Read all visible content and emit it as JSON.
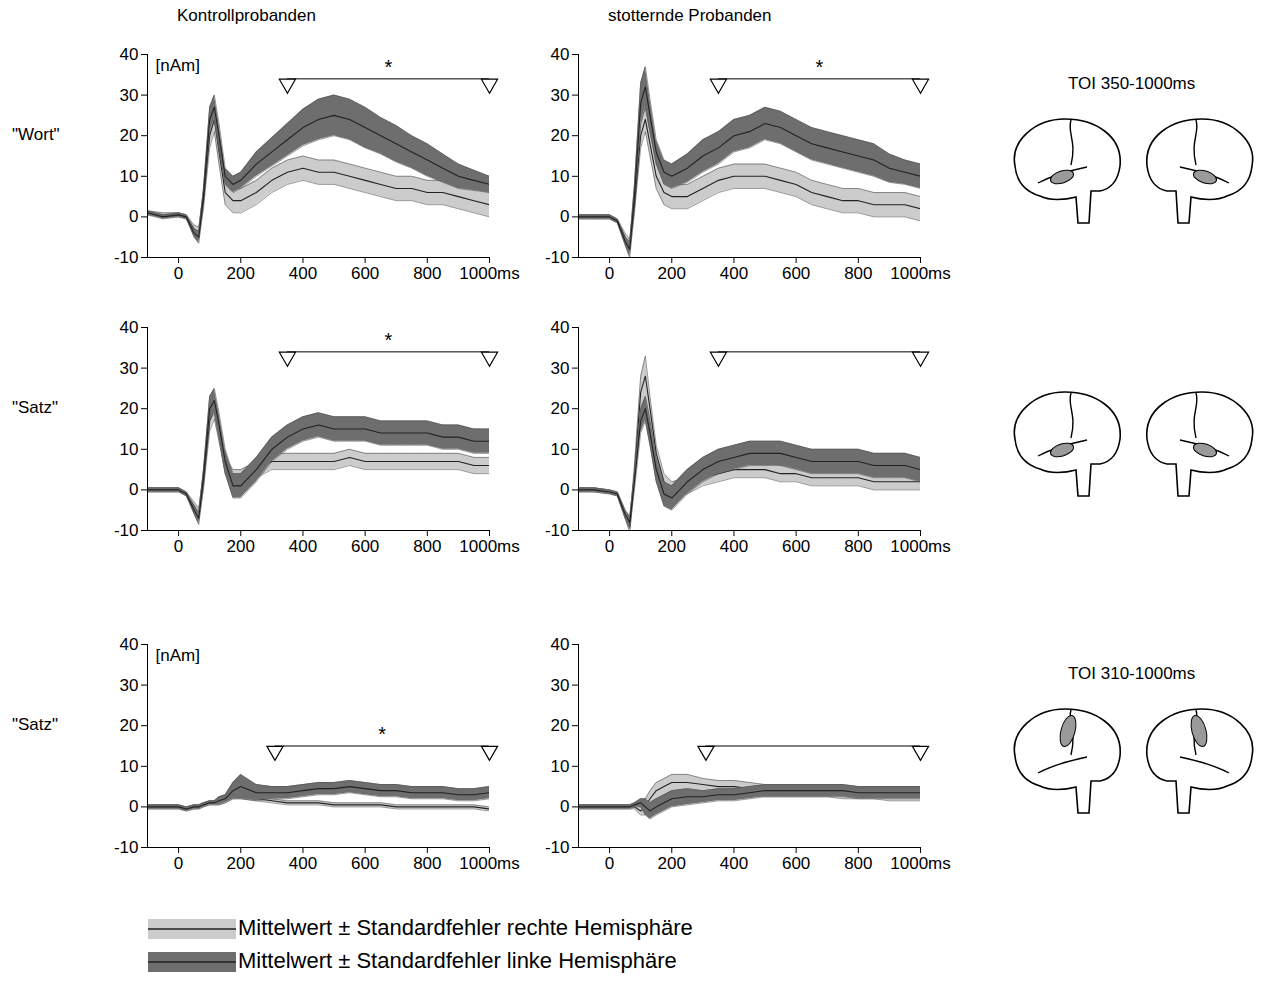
{
  "column_titles": [
    "Kontrollprobanden",
    "stotternde Probanden"
  ],
  "rows": [
    {
      "label": "\"Wort\"",
      "toi_label": "TOI 350-1000ms"
    },
    {
      "label": "\"Satz\""
    },
    {
      "label": "\"Satz\"",
      "toi_label": "TOI 310-1000ms"
    }
  ],
  "legend": "bottom",
  "chart_data": [
    {
      "type": "line",
      "unit_label": "[nAm]",
      "x": [
        -100,
        -50,
        0,
        25,
        50,
        65,
        80,
        100,
        115,
        130,
        150,
        175,
        200,
        250,
        300,
        350,
        400,
        450,
        500,
        550,
        600,
        650,
        700,
        750,
        800,
        850,
        900,
        950,
        1000
      ],
      "xlim": [
        -100,
        1000
      ],
      "xticks": [
        0,
        200,
        400,
        600,
        800,
        {
          "value": 1000,
          "label": "1000ms"
        }
      ],
      "ylim": [
        -10,
        40
      ],
      "yticks": [
        -10,
        0,
        10,
        20,
        30,
        40
      ],
      "series": [
        {
          "name": "Mittelwert ± Standardfehler rechte Hemisphäre",
          "color": "#cccccc",
          "values": [
            1,
            0.5,
            0.5,
            0,
            -3,
            -4,
            4,
            20,
            24,
            16,
            6,
            4,
            4,
            6,
            9,
            11,
            12,
            11,
            11,
            10,
            9,
            8,
            7,
            7,
            6,
            6,
            5,
            4,
            3
          ],
          "error": [
            0.5,
            0.5,
            0.5,
            0.5,
            1,
            1.5,
            2,
            3,
            3,
            3,
            3,
            3,
            3,
            3,
            3,
            3,
            3,
            3,
            3,
            3,
            3,
            3,
            3,
            3,
            3,
            3,
            3,
            3,
            3
          ]
        },
        {
          "name": "Mittelwert ± Standardfehler linke Hemisphäre",
          "color": "#6e6e6e",
          "values": [
            1,
            0,
            0.5,
            0,
            -4,
            -5,
            5,
            24,
            27,
            20,
            10,
            8,
            9,
            13,
            16,
            19,
            22,
            24,
            25,
            24,
            22,
            20,
            18,
            16,
            14,
            12,
            10,
            9,
            8
          ],
          "error": [
            0.5,
            0.5,
            0.5,
            0.5,
            1,
            1.5,
            2,
            3,
            3,
            3,
            2,
            2,
            2,
            3,
            3.5,
            4,
            4.5,
            5,
            5,
            5,
            5,
            4.5,
            4.5,
            4,
            4,
            3.5,
            3,
            2.5,
            2
          ]
        }
      ],
      "annotations": [
        {
          "x": [
            350,
            1000
          ],
          "y": 34,
          "text": "*"
        }
      ]
    },
    {
      "type": "line",
      "x": [
        -100,
        -50,
        0,
        25,
        50,
        65,
        80,
        100,
        115,
        130,
        150,
        175,
        200,
        250,
        300,
        350,
        400,
        450,
        500,
        550,
        600,
        650,
        700,
        750,
        800,
        850,
        900,
        950,
        1000
      ],
      "xlim": [
        -100,
        1000
      ],
      "xticks": [
        0,
        200,
        400,
        600,
        800,
        {
          "value": 1000,
          "label": "1000ms"
        }
      ],
      "ylim": [
        -10,
        40
      ],
      "yticks": [
        -10,
        0,
        10,
        20,
        30,
        40
      ],
      "series": [
        {
          "name": "Mittelwert ± Standardfehler rechte Hemisphäre",
          "color": "#cccccc",
          "values": [
            0,
            0,
            0,
            -1,
            -5,
            -7,
            3,
            20,
            24,
            18,
            10,
            6,
            5,
            5,
            7,
            9,
            10,
            10,
            10,
            9,
            8,
            6,
            5,
            4,
            4,
            3,
            3,
            3,
            2
          ],
          "error": [
            0.5,
            0.5,
            0.5,
            0.5,
            1,
            1.5,
            2,
            3,
            3,
            3,
            3,
            3,
            3,
            3,
            3,
            3,
            3,
            3,
            3,
            3,
            3,
            3,
            3,
            3,
            3,
            3,
            3,
            3,
            3
          ]
        },
        {
          "name": "Mittelwert ± Standardfehler linke Hemisphäre",
          "color": "#6e6e6e",
          "values": [
            0,
            0,
            0,
            -1,
            -6,
            -8,
            5,
            28,
            32,
            25,
            16,
            11,
            10,
            12,
            15,
            17,
            20,
            21,
            23,
            22,
            20,
            18,
            17,
            16,
            15,
            14,
            12,
            11,
            10
          ],
          "error": [
            0.5,
            0.5,
            0.5,
            0.5,
            1,
            2,
            3,
            5,
            5,
            4,
            3,
            3,
            3,
            3.5,
            4,
            4,
            4,
            4,
            4,
            4,
            4,
            4,
            4,
            4,
            4,
            4,
            3.5,
            3,
            3
          ]
        }
      ],
      "annotations": [
        {
          "x": [
            350,
            1000
          ],
          "y": 34,
          "text": "*"
        }
      ]
    },
    {
      "type": "line",
      "x": [
        -100,
        -50,
        0,
        25,
        50,
        65,
        80,
        100,
        115,
        130,
        150,
        175,
        200,
        250,
        300,
        350,
        400,
        450,
        500,
        550,
        600,
        650,
        700,
        750,
        800,
        850,
        900,
        950,
        1000
      ],
      "xlim": [
        -100,
        1000
      ],
      "xticks": [
        0,
        200,
        400,
        600,
        800,
        {
          "value": 1000,
          "label": "1000ms"
        }
      ],
      "ylim": [
        -10,
        40
      ],
      "yticks": [
        -10,
        0,
        10,
        20,
        30,
        40
      ],
      "series": [
        {
          "name": "Mittelwert ± Standardfehler rechte Hemisphäre",
          "color": "#cccccc",
          "values": [
            0,
            0,
            0,
            -1,
            -4,
            -6,
            2,
            17,
            20,
            14,
            6,
            3,
            3,
            5,
            7,
            7,
            7,
            7,
            7,
            8,
            7,
            7,
            7,
            7,
            7,
            7,
            7,
            6,
            6
          ],
          "error": [
            0.5,
            0.5,
            0.5,
            0.5,
            1,
            1.5,
            2,
            2.5,
            2.5,
            2,
            2,
            2,
            2,
            2,
            2,
            2,
            2,
            2,
            2,
            2,
            2,
            2,
            2,
            2,
            2,
            2,
            2,
            2,
            2
          ]
        },
        {
          "name": "Mittelwert ± Standardfehler linke Hemisphäre",
          "color": "#6e6e6e",
          "values": [
            0,
            0,
            0,
            -1,
            -5,
            -7,
            3,
            20,
            22,
            16,
            7,
            1,
            1,
            5,
            10,
            13,
            15,
            16,
            15,
            15,
            15,
            14,
            14,
            14,
            14,
            13,
            13,
            12,
            12
          ],
          "error": [
            0.5,
            0.5,
            0.5,
            0.5,
            1,
            1.5,
            2,
            3,
            3,
            3,
            3,
            3,
            3,
            3,
            3,
            3,
            3,
            3,
            3,
            3,
            3,
            3,
            3,
            3,
            3,
            3,
            3,
            3,
            3
          ]
        }
      ],
      "annotations": [
        {
          "x": [
            350,
            1000
          ],
          "y": 34,
          "text": "*"
        }
      ]
    },
    {
      "type": "line",
      "x": [
        -100,
        -50,
        0,
        25,
        50,
        65,
        80,
        100,
        115,
        130,
        150,
        175,
        200,
        250,
        300,
        350,
        400,
        450,
        500,
        550,
        600,
        650,
        700,
        750,
        800,
        850,
        900,
        950,
        1000
      ],
      "xlim": [
        -100,
        1000
      ],
      "xticks": [
        0,
        200,
        400,
        600,
        800,
        {
          "value": 1000,
          "label": "1000ms"
        }
      ],
      "ylim": [
        -10,
        40
      ],
      "yticks": [
        -10,
        0,
        10,
        20,
        30,
        40
      ],
      "series": [
        {
          "name": "Mittelwert ± Standardfehler rechte Hemisphäre",
          "color": "#cccccc",
          "values": [
            0,
            0,
            -0.5,
            -1,
            -6,
            -9,
            4,
            24,
            28,
            20,
            9,
            2,
            0,
            1,
            3,
            4,
            5,
            5,
            5,
            4,
            4,
            3,
            3,
            3,
            3,
            2,
            2,
            2,
            2
          ],
          "error": [
            0.5,
            0.5,
            0.5,
            0.5,
            1,
            1.5,
            2,
            4,
            5,
            3,
            2,
            2,
            2,
            2,
            2,
            2,
            2,
            2,
            2,
            2,
            2,
            2,
            2,
            2,
            2,
            2,
            2,
            2,
            2
          ]
        },
        {
          "name": "Mittelwert ± Standardfehler linke Hemisphäre",
          "color": "#6e6e6e",
          "values": [
            0,
            0,
            -0.5,
            -1,
            -6,
            -8,
            2,
            17,
            20,
            14,
            5,
            -1,
            -2,
            2,
            5,
            7,
            8,
            9,
            9,
            9,
            8,
            7,
            7,
            7,
            7,
            6,
            6,
            6,
            5
          ],
          "error": [
            0.5,
            0.5,
            0.5,
            0.5,
            1,
            1.5,
            2,
            3,
            3,
            3,
            3,
            3,
            3,
            3,
            3,
            3,
            3,
            3,
            3,
            3,
            3,
            3,
            3,
            3,
            3,
            3,
            3,
            3,
            3
          ]
        }
      ],
      "annotations": [
        {
          "x": [
            350,
            1000
          ],
          "y": 34
        }
      ]
    },
    {
      "type": "line",
      "unit_label": "[nAm]",
      "x": [
        -100,
        -50,
        0,
        25,
        50,
        65,
        80,
        100,
        115,
        130,
        150,
        175,
        200,
        250,
        300,
        350,
        400,
        450,
        500,
        550,
        600,
        650,
        700,
        750,
        800,
        850,
        900,
        950,
        1000
      ],
      "xlim": [
        -100,
        1000
      ],
      "xticks": [
        0,
        200,
        400,
        600,
        800,
        {
          "value": 1000,
          "label": "1000ms"
        }
      ],
      "ylim": [
        -10,
        40
      ],
      "yticks": [
        -10,
        0,
        10,
        20,
        30,
        40
      ],
      "series": [
        {
          "name": "Mittelwert ± Standardfehler rechte Hemisphäre",
          "color": "#cccccc",
          "values": [
            0,
            0,
            0,
            -0.5,
            0,
            0,
            0.5,
            1,
            1,
            1,
            1.5,
            2.5,
            2.5,
            2,
            1.5,
            1,
            1,
            1,
            0.5,
            0.5,
            0.5,
            0.5,
            0,
            0,
            0,
            0,
            0,
            0,
            -0.5
          ],
          "error": [
            0.5,
            0.5,
            0.5,
            0.5,
            0.5,
            0.5,
            0.5,
            0.5,
            0.5,
            0.5,
            0.5,
            0.5,
            0.5,
            0.5,
            0.5,
            0.5,
            0.5,
            0.5,
            0.5,
            0.5,
            0.5,
            0.5,
            0.5,
            0.5,
            0.5,
            0.5,
            0.5,
            0.5,
            0.5
          ]
        },
        {
          "name": "Mittelwert ± Standardfehler linke Hemisphäre",
          "color": "#6e6e6e",
          "values": [
            0,
            0,
            0,
            -0.5,
            0,
            0,
            0.5,
            1,
            1,
            1.5,
            2,
            4,
            5,
            3.5,
            3.5,
            3.5,
            4,
            4.5,
            4.5,
            5,
            4.5,
            4,
            4,
            3.5,
            3.5,
            3.5,
            3,
            3,
            3.5
          ],
          "error": [
            0.5,
            0.5,
            0.5,
            0.5,
            0.5,
            0.5,
            0.5,
            0.5,
            0.5,
            1,
            1,
            2,
            3,
            2,
            1.5,
            1.5,
            1.5,
            1.5,
            1.5,
            1.5,
            1.5,
            1.5,
            1.5,
            1.5,
            1.5,
            1.5,
            1.5,
            1.5,
            1.5
          ]
        }
      ],
      "annotations": [
        {
          "x": [
            310,
            1000
          ],
          "y": 15,
          "text": "*"
        }
      ]
    },
    {
      "type": "line",
      "x": [
        -100,
        -50,
        0,
        25,
        50,
        65,
        80,
        100,
        115,
        130,
        150,
        175,
        200,
        250,
        300,
        350,
        400,
        450,
        500,
        550,
        600,
        650,
        700,
        750,
        800,
        850,
        900,
        950,
        1000
      ],
      "xlim": [
        -100,
        1000
      ],
      "xticks": [
        0,
        200,
        400,
        600,
        800,
        {
          "value": 1000,
          "label": "1000ms"
        }
      ],
      "ylim": [
        -10,
        40
      ],
      "yticks": [
        -10,
        0,
        10,
        20,
        30,
        40
      ],
      "series": [
        {
          "name": "Mittelwert ± Standardfehler rechte Hemisphäre",
          "color": "#cccccc",
          "values": [
            0,
            0,
            0,
            0,
            0,
            0,
            0,
            -1,
            0,
            2,
            4,
            5,
            6,
            6,
            5.5,
            5,
            5,
            4.5,
            4,
            4,
            4,
            4,
            4,
            3.5,
            3.5,
            3.5,
            3,
            3,
            3
          ],
          "error": [
            0.5,
            0.5,
            0.5,
            0.5,
            0.5,
            0.5,
            0.5,
            1,
            2,
            2,
            2,
            2,
            2,
            2,
            1.5,
            1.5,
            1.5,
            1.5,
            1.5,
            1.5,
            1.5,
            1.5,
            1.5,
            1.5,
            1.5,
            1.5,
            1.5,
            1.5,
            1.5
          ]
        },
        {
          "name": "Mittelwert ± Standardfehler linke Hemisphäre",
          "color": "#6e6e6e",
          "values": [
            0,
            0,
            0,
            0,
            0,
            0,
            0.5,
            1,
            0,
            -1,
            0,
            1,
            2,
            2.5,
            2.5,
            3,
            3,
            3.5,
            4,
            4,
            4,
            4,
            4,
            4,
            3.5,
            3.5,
            3.5,
            3.5,
            3.5
          ],
          "error": [
            0.5,
            0.5,
            0.5,
            0.5,
            0.5,
            0.5,
            0.5,
            1,
            2,
            2,
            2,
            2,
            2,
            2,
            1.5,
            1.5,
            1.5,
            1.5,
            1.5,
            1.5,
            1.5,
            1.5,
            1.5,
            1.5,
            1.5,
            1.5,
            1.5,
            1.5,
            1.5
          ]
        }
      ],
      "annotations": [
        {
          "x": [
            310,
            1000
          ],
          "y": 15
        }
      ]
    }
  ]
}
